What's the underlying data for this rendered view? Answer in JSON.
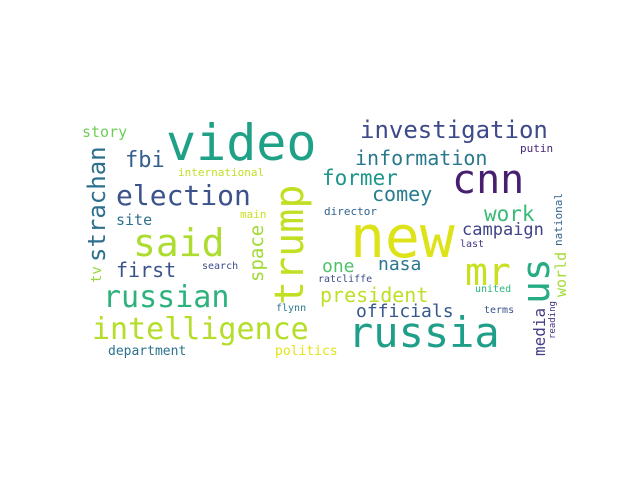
{
  "word_cloud": {
    "background": "#ffffff",
    "words": [
      {
        "text": "video",
        "color": "#1fa187"
      },
      {
        "text": "new",
        "color": "#dde318"
      },
      {
        "text": "cnn",
        "color": "#481f70"
      },
      {
        "text": "said",
        "color": "#addc30"
      },
      {
        "text": "russia",
        "color": "#1f9e89"
      },
      {
        "text": "trump",
        "color": "#c2df23"
      },
      {
        "text": "intelligence",
        "color": "#b5de2b"
      },
      {
        "text": "mr",
        "color": "#c8e020"
      },
      {
        "text": "us",
        "color": "#25ac82"
      },
      {
        "text": "russian",
        "color": "#2db27d"
      },
      {
        "text": "election",
        "color": "#3b528b"
      },
      {
        "text": "investigation",
        "color": "#3e4a89"
      },
      {
        "text": "information",
        "color": "#2a788e"
      },
      {
        "text": "strachan",
        "color": "#2e6f8e"
      },
      {
        "text": "former",
        "color": "#1f968b"
      },
      {
        "text": "president",
        "color": "#bddf26"
      },
      {
        "text": "fbi",
        "color": "#355f8d"
      },
      {
        "text": "comey",
        "color": "#287d8e"
      },
      {
        "text": "work",
        "color": "#3aba76"
      },
      {
        "text": "space",
        "color": "#a2da37"
      },
      {
        "text": "first",
        "color": "#3b528b"
      },
      {
        "text": "one",
        "color": "#4ec36b"
      },
      {
        "text": "nasa",
        "color": "#2a788e"
      },
      {
        "text": "officials",
        "color": "#38588c"
      },
      {
        "text": "campaign",
        "color": "#404387"
      },
      {
        "text": "media",
        "color": "#433e85"
      },
      {
        "text": "world",
        "color": "#a5db36"
      },
      {
        "text": "story",
        "color": "#6ece58"
      },
      {
        "text": "site",
        "color": "#2c728e"
      },
      {
        "text": "department",
        "color": "#2c728e"
      },
      {
        "text": "politics",
        "color": "#e2e418"
      },
      {
        "text": "tv",
        "color": "#98d83e"
      },
      {
        "text": "international",
        "color": "#c2df23"
      },
      {
        "text": "director",
        "color": "#33638d"
      },
      {
        "text": "putin",
        "color": "#482677"
      },
      {
        "text": "national",
        "color": "#33638d"
      },
      {
        "text": "main",
        "color": "#cae11f"
      },
      {
        "text": "search",
        "color": "#3e4c8a"
      },
      {
        "text": "last",
        "color": "#453781"
      },
      {
        "text": "ratcliffe",
        "color": "#3e4c8a"
      },
      {
        "text": "flynn",
        "color": "#2a788e"
      },
      {
        "text": "united",
        "color": "#2db27d"
      },
      {
        "text": "terms",
        "color": "#3b528b"
      },
      {
        "text": "reading",
        "color": "#46327e"
      }
    ]
  }
}
